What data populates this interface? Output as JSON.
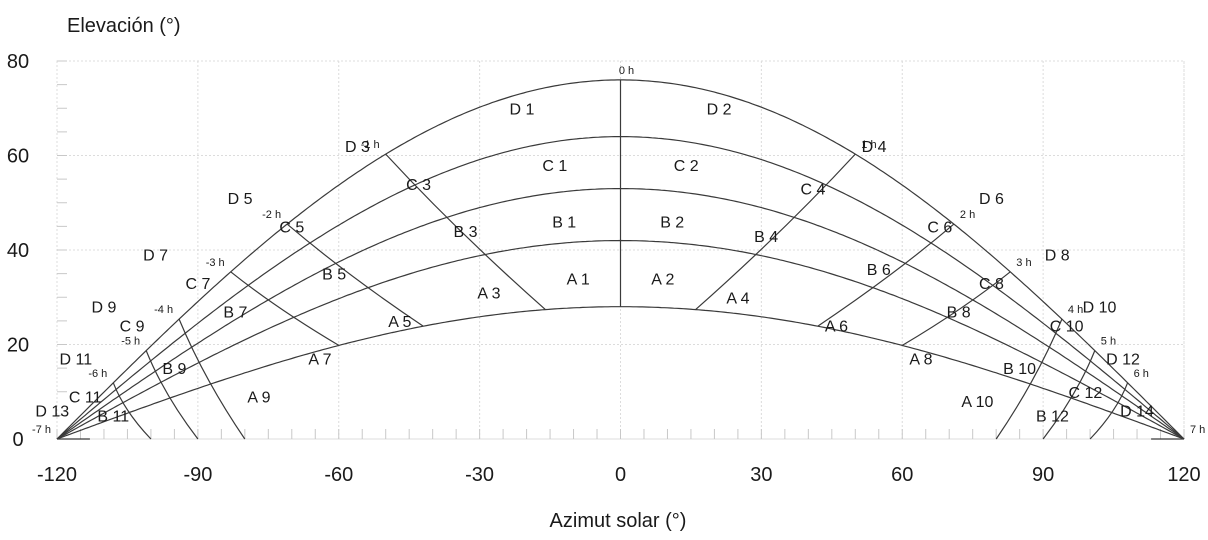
{
  "chart_data": {
    "type": "line",
    "title": "",
    "xlabel": "Azimut solar (°)",
    "ylabel": "Elevación (°)",
    "xlim": [
      -120,
      120
    ],
    "ylim": [
      0,
      80
    ],
    "x_ticks": [
      -120,
      -90,
      -60,
      -30,
      0,
      30,
      60,
      90,
      120
    ],
    "y_ticks": [
      0,
      20,
      40,
      60,
      80
    ],
    "grid": true,
    "altitude_curves": [
      {
        "name": "",
        "peak_elevation": 28
      },
      {
        "name": "",
        "peak_elevation": 42
      },
      {
        "name": "",
        "peak_elevation": 53
      },
      {
        "name": "",
        "peak_elevation": 64
      },
      {
        "name": "",
        "peak_elevation": 76
      }
    ],
    "hour_lines": [
      {
        "label": "-7 h",
        "azimuth_bottom": -113,
        "azimuth_top": -120
      },
      {
        "label": "-6 h",
        "azimuth_bottom": -100,
        "azimuth_top": -108
      },
      {
        "label": "-5 h",
        "azimuth_bottom": -90,
        "azimuth_top": -101
      },
      {
        "label": "-4 h",
        "azimuth_bottom": -80,
        "azimuth_top": -94
      },
      {
        "label": "-3 h",
        "azimuth_bottom": -60,
        "azimuth_top": -83
      },
      {
        "label": "-2 h",
        "azimuth_bottom": -42,
        "azimuth_top": -71
      },
      {
        "label": "-1 h",
        "azimuth_bottom": -16,
        "azimuth_top": -50
      },
      {
        "label": "0 h",
        "azimuth_bottom": 0,
        "azimuth_top": 0
      },
      {
        "label": "1 h",
        "azimuth_bottom": 16,
        "azimuth_top": 50
      },
      {
        "label": "2 h",
        "azimuth_bottom": 42,
        "azimuth_top": 71
      },
      {
        "label": "3 h",
        "azimuth_bottom": 60,
        "azimuth_top": 83
      },
      {
        "label": "4 h",
        "azimuth_bottom": 80,
        "azimuth_top": 94
      },
      {
        "label": "5 h",
        "azimuth_bottom": 90,
        "azimuth_top": 101
      },
      {
        "label": "6 h",
        "azimuth_bottom": 100,
        "azimuth_top": 108
      },
      {
        "label": "7 h",
        "azimuth_bottom": 113,
        "azimuth_top": 120
      }
    ],
    "zones": [
      {
        "label": "A 1",
        "x": -9,
        "y": 34
      },
      {
        "label": "A 2",
        "x": 9,
        "y": 34
      },
      {
        "label": "A 3",
        "x": -28,
        "y": 31
      },
      {
        "label": "A 4",
        "x": 25,
        "y": 30
      },
      {
        "label": "A 5",
        "x": -47,
        "y": 25
      },
      {
        "label": "A 6",
        "x": 46,
        "y": 24
      },
      {
        "label": "A 7",
        "x": -64,
        "y": 17
      },
      {
        "label": "A 8",
        "x": 64,
        "y": 17
      },
      {
        "label": "A 9",
        "x": -77,
        "y": 9
      },
      {
        "label": "A 10",
        "x": 76,
        "y": 8
      },
      {
        "label": "B 1",
        "x": -12,
        "y": 46
      },
      {
        "label": "B 2",
        "x": 11,
        "y": 46
      },
      {
        "label": "B 3",
        "x": -33,
        "y": 44
      },
      {
        "label": "B 4",
        "x": 31,
        "y": 43
      },
      {
        "label": "B 5",
        "x": -61,
        "y": 35
      },
      {
        "label": "B 6",
        "x": 55,
        "y": 36
      },
      {
        "label": "B 7",
        "x": -82,
        "y": 27
      },
      {
        "label": "B 8",
        "x": 72,
        "y": 27
      },
      {
        "label": "B 9",
        "x": -95,
        "y": 15
      },
      {
        "label": "B 10",
        "x": 85,
        "y": 15
      },
      {
        "label": "B 11",
        "x": -108,
        "y": 5
      },
      {
        "label": "B 12",
        "x": 92,
        "y": 5
      },
      {
        "label": "C 1",
        "x": -14,
        "y": 58
      },
      {
        "label": "C 2",
        "x": 14,
        "y": 58
      },
      {
        "label": "C 3",
        "x": -43,
        "y": 54
      },
      {
        "label": "C 4",
        "x": 41,
        "y": 53
      },
      {
        "label": "C 5",
        "x": -70,
        "y": 45
      },
      {
        "label": "C 6",
        "x": 68,
        "y": 45
      },
      {
        "label": "C 7",
        "x": -90,
        "y": 33
      },
      {
        "label": "C 8",
        "x": 79,
        "y": 33
      },
      {
        "label": "C 9",
        "x": -104,
        "y": 24
      },
      {
        "label": "C 10",
        "x": 95,
        "y": 24
      },
      {
        "label": "C 11",
        "x": -114,
        "y": 9
      },
      {
        "label": "C 12",
        "x": 99,
        "y": 10
      },
      {
        "label": "D 1",
        "x": -21,
        "y": 70
      },
      {
        "label": "D 2",
        "x": 21,
        "y": 70
      },
      {
        "label": "D 3",
        "x": -56,
        "y": 62
      },
      {
        "label": "D 4",
        "x": 54,
        "y": 62
      },
      {
        "label": "D 5",
        "x": -81,
        "y": 51
      },
      {
        "label": "D 6",
        "x": 79,
        "y": 51
      },
      {
        "label": "D 7",
        "x": -99,
        "y": 39
      },
      {
        "label": "D 8",
        "x": 93,
        "y": 39
      },
      {
        "label": "D 9",
        "x": -110,
        "y": 28
      },
      {
        "label": "D 10",
        "x": 102,
        "y": 28
      },
      {
        "label": "D 11",
        "x": -116,
        "y": 17
      },
      {
        "label": "D 12",
        "x": 107,
        "y": 17
      },
      {
        "label": "D 13",
        "x": -121,
        "y": 6
      },
      {
        "label": "D 14",
        "x": 110,
        "y": 6
      }
    ]
  }
}
